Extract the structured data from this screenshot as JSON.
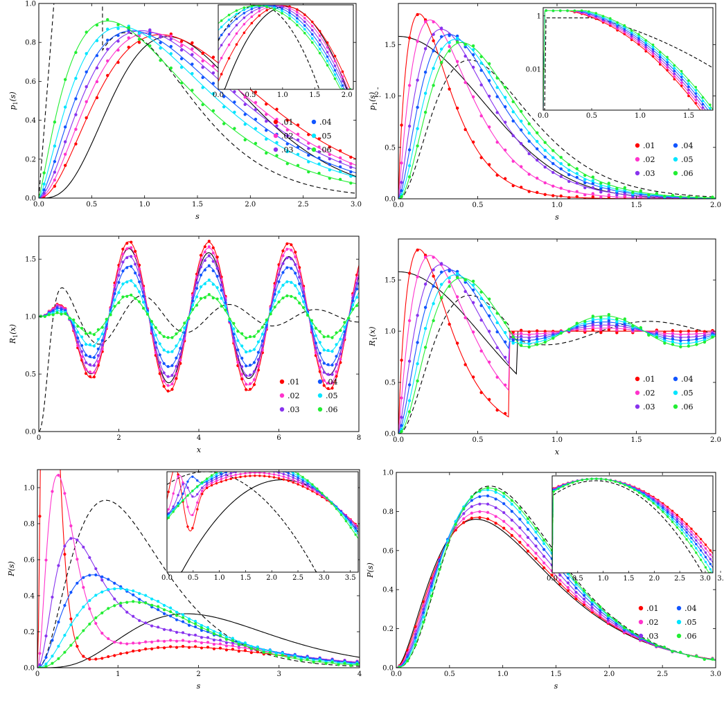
{
  "colors": {
    "01": "#ff0000",
    "02": "#ff33cc",
    "03": "#8833ee",
    "04": "#1155ff",
    "05": "#00e5ff",
    "06": "#22ee33",
    "theory": "#000000"
  },
  "chart_data": [
    {
      "id": "A",
      "type": "line",
      "xlabel": "s",
      "ylabel": "p1(s)",
      "xlim": [
        0,
        3
      ],
      "ylim": [
        0,
        1
      ],
      "xticks": [
        "0.0",
        "0.5",
        "1.0",
        "1.5",
        "2.0",
        "2.5",
        "3.0"
      ],
      "yticks": [
        "0.0",
        "0.2",
        "0.4",
        "0.6",
        "0.8",
        "1.0"
      ],
      "legend": [
        "● .01",
        "● .02",
        "● .03",
        "● .04",
        "● .05",
        "● .06"
      ],
      "legend_placement": "lower-right",
      "series_peaks": [
        {
          "name": ".01",
          "peak_x": 1.15,
          "peak_y": 0.84
        },
        {
          "name": ".02",
          "peak_x": 1.05,
          "peak_y": 0.85
        },
        {
          "name": ".03",
          "peak_x": 0.97,
          "peak_y": 0.86
        },
        {
          "name": ".04",
          "peak_x": 0.88,
          "peak_y": 0.86
        },
        {
          "name": ".05",
          "peak_x": 0.78,
          "peak_y": 0.88
        },
        {
          "name": ".06",
          "peak_x": 0.65,
          "peak_y": 0.91
        }
      ],
      "theory_solid_peak": [
        1.22,
        0.83
      ],
      "inset": {
        "xticks": [
          "0.0",
          "0.5",
          "1.0",
          "1.5",
          "2.0",
          "2."
        ],
        "yscale": "log"
      }
    },
    {
      "id": "B",
      "type": "line",
      "xlabel": "s",
      "ylabel": "p1(s)",
      "xlim": [
        0,
        2
      ],
      "ylim": [
        0,
        1.9
      ],
      "xticks": [
        "0.0",
        "0.5",
        "1.0",
        "1.5",
        "2.0"
      ],
      "yticks": [
        "0.0",
        "0.5",
        "1.0",
        "1.5"
      ],
      "legend": [
        "● .01",
        "● .02",
        "● .03",
        "● .04",
        "● .05",
        "● .06"
      ],
      "legend_placement": "right",
      "series_peaks": [
        {
          "name": ".01",
          "peak_x": 0.13,
          "peak_y": 1.8
        },
        {
          "name": ".02",
          "peak_x": 0.2,
          "peak_y": 1.74
        },
        {
          "name": ".03",
          "peak_x": 0.27,
          "peak_y": 1.65
        },
        {
          "name": ".04",
          "peak_x": 0.32,
          "peak_y": 1.6
        },
        {
          "name": ".05",
          "peak_x": 0.36,
          "peak_y": 1.55
        },
        {
          "name": ".06",
          "peak_x": 0.4,
          "peak_y": 1.52
        }
      ],
      "inset": {
        "xticks": [
          "0.0",
          "0.5",
          "1.0",
          "1.5"
        ],
        "yticks": [
          "1",
          "0.01"
        ],
        "yscale": "log"
      }
    },
    {
      "id": "C",
      "type": "line",
      "xlabel": "x",
      "ylabel": "R1(x)",
      "xlim": [
        0,
        8
      ],
      "ylim": [
        0,
        1.7
      ],
      "xticks": [
        "0",
        "2",
        "4",
        "6",
        "8"
      ],
      "yticks": [
        "0.0",
        "0.5",
        "1.0",
        "1.5"
      ],
      "legend": [
        "● .01",
        "● .02",
        "● .03",
        "● .04",
        "● .05",
        "● .06"
      ],
      "legend_placement": "lower-right",
      "oscillation_amplitude": [
        0.67,
        0.62,
        0.54,
        0.45,
        0.32,
        0.19
      ],
      "first_peak": [
        1.2,
        1.65
      ]
    },
    {
      "id": "D",
      "type": "line",
      "xlabel": "x",
      "ylabel": "R1(x)",
      "xlim": [
        0,
        2
      ],
      "ylim": [
        0,
        1.9
      ],
      "xticks": [
        "0.0",
        "0.5",
        "1.0",
        "1.5",
        "2.0"
      ],
      "yticks": [
        "0.0",
        "0.5",
        "1.0",
        "1.5"
      ],
      "legend": [
        "● .01",
        "● .02",
        "● .03",
        "● .04",
        "● .05",
        "● .06"
      ],
      "legend_placement": "lower-right"
    },
    {
      "id": "E",
      "type": "line",
      "xlabel": "s",
      "ylabel": "P(s)",
      "xlim": [
        0,
        4
      ],
      "ylim": [
        0,
        1.1
      ],
      "xticks": [
        "0",
        "1",
        "2",
        "3",
        "4"
      ],
      "yticks": [
        "0.0",
        "0.2",
        "0.4",
        "0.6",
        "0.8",
        "1.0"
      ],
      "legend": [
        "● .01",
        "● .02",
        "● .03",
        "● .04",
        "● .05",
        "● .06"
      ],
      "legend_placement": "lower-right",
      "first_peak_x": [
        0.12,
        0.25,
        0.42,
        0.58,
        0.72,
        0.82
      ],
      "inset": {
        "xticks": [
          "0.0",
          "0.5",
          "1.0",
          "1.5",
          "2.0",
          "2.5",
          "3.0",
          "3.5"
        ],
        "yscale": "log"
      }
    },
    {
      "id": "F",
      "type": "line",
      "xlabel": "s",
      "ylabel": "P(s)",
      "xlim": [
        0,
        3
      ],
      "ylim": [
        0,
        1
      ],
      "xticks": [
        "0.0",
        "0.5",
        "1.0",
        "1.5",
        "2.0",
        "2.5",
        "3.0"
      ],
      "yticks": [
        "0.0",
        "0.2",
        "0.4",
        "0.6",
        "0.8",
        "1.0"
      ],
      "legend": [
        "● .01",
        "● .02",
        "● .03",
        "● .04",
        "● .05",
        "● .06"
      ],
      "legend_placement": "lower-right",
      "peak_y": [
        0.77,
        0.8,
        0.84,
        0.88,
        0.91,
        0.92
      ],
      "inset": {
        "xticks": [
          "0.0",
          "0.5",
          "1.0",
          "1.5",
          "2.0",
          "2.5",
          "3.0",
          "3."
        ],
        "yscale": "log"
      }
    }
  ]
}
